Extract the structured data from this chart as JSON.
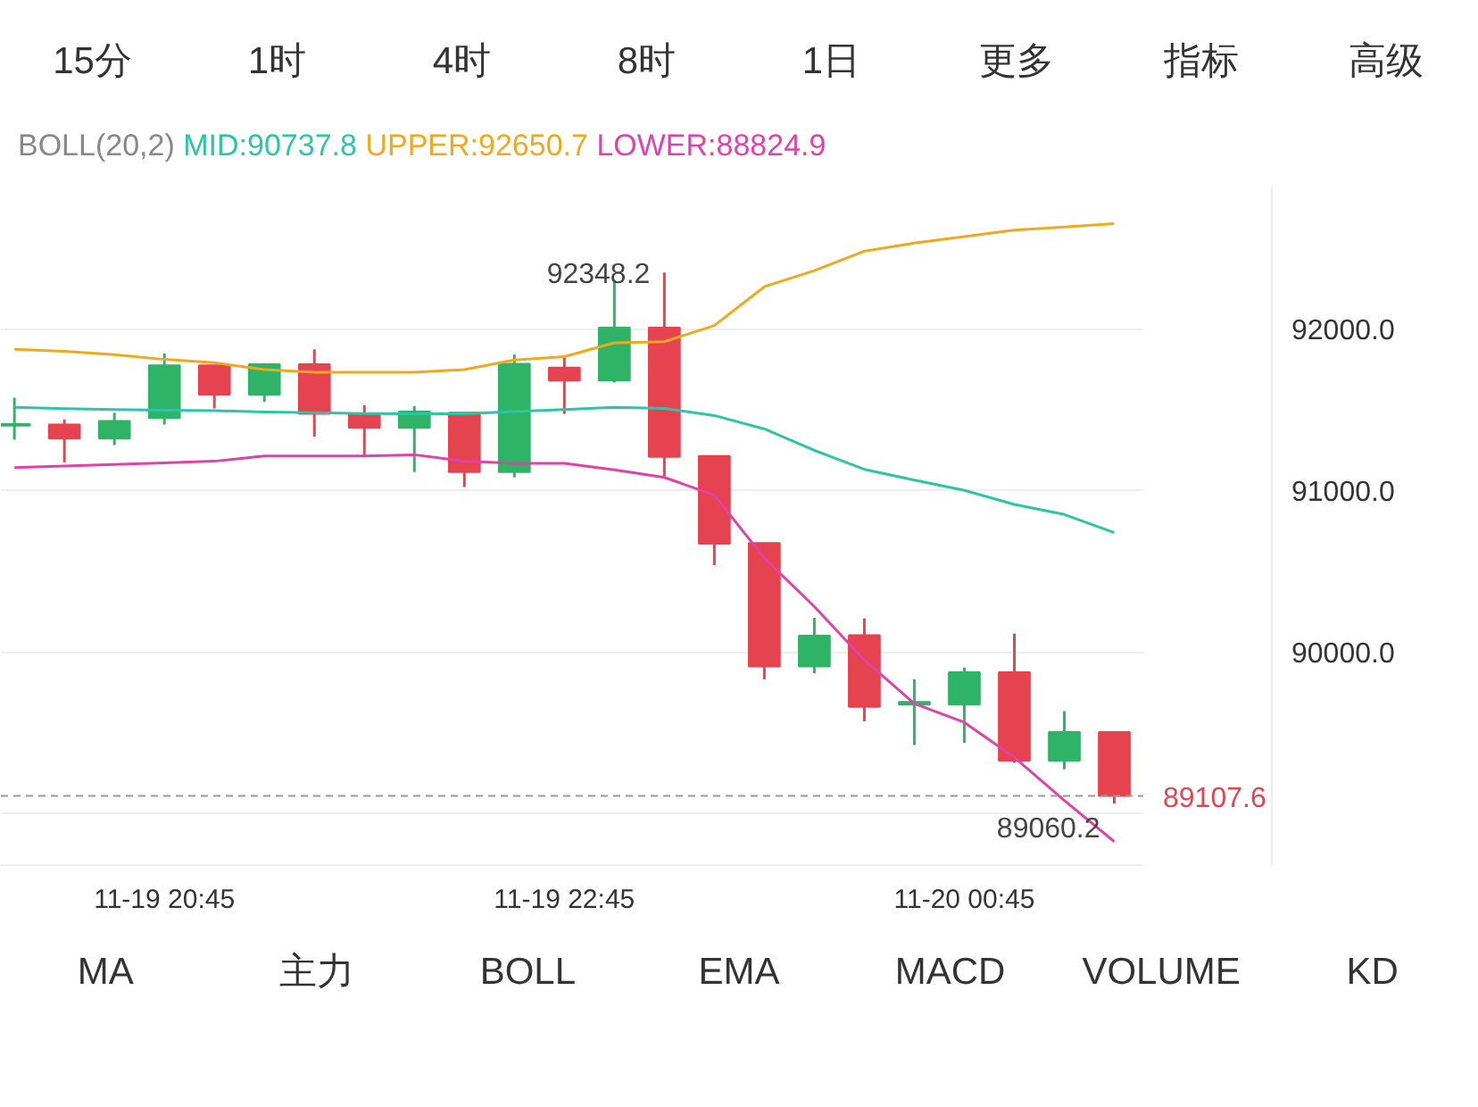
{
  "chart_data": {
    "type": "candlestick",
    "categories": [
      null,
      null,
      null,
      "11-19 20:45",
      null,
      null,
      null,
      null,
      null,
      null,
      null,
      "11-19 22:45",
      null,
      null,
      null,
      null,
      null,
      null,
      null,
      "11-20 00:45",
      null,
      null,
      null
    ],
    "ohlc": [
      [
        91400,
        91573,
        91313,
        91410
      ],
      [
        91407,
        91437,
        91173,
        91320
      ],
      [
        91320,
        91480,
        91280,
        91430
      ],
      [
        91447,
        91847,
        91407,
        91773
      ],
      [
        91773,
        91773,
        91507,
        91593
      ],
      [
        91593,
        91787,
        91547,
        91780
      ],
      [
        91780,
        91873,
        91333,
        91473
      ],
      [
        91473,
        91527,
        91207,
        91387
      ],
      [
        91387,
        91520,
        91113,
        91487
      ],
      [
        91480,
        91480,
        91020,
        91113
      ],
      [
        91113,
        91840,
        91080,
        91783
      ],
      [
        91760,
        91833,
        91473,
        91680
      ],
      [
        91680,
        92300,
        91667,
        92007
      ],
      [
        92007,
        92348.2,
        91087,
        91207
      ],
      [
        91213,
        91213,
        90537,
        90670
      ],
      [
        90673,
        90673,
        89830,
        89910
      ],
      [
        89910,
        90210,
        89867,
        90100
      ],
      [
        90103,
        90207,
        89570,
        89660
      ],
      [
        89673,
        89830,
        89423,
        89690
      ],
      [
        89673,
        89903,
        89437,
        89873
      ],
      [
        89873,
        90113,
        89313,
        89327
      ],
      [
        89327,
        89633,
        89273,
        89503
      ],
      [
        89503,
        89503,
        89060.2,
        89107.6
      ]
    ],
    "colors": [
      "#2fb366",
      "#e5434f",
      "#2fb366",
      "#2fb366",
      "#e5434f",
      "#2fb366",
      "#e5434f",
      "#e5434f",
      "#2fb366",
      "#e5434f",
      "#2fb366",
      "#e5434f",
      "#2fb366",
      "#e5434f",
      "#e5434f",
      "#e5434f",
      "#2fb366",
      "#e5434f",
      "#2fb366",
      "#2fb366",
      "#e5434f",
      "#2fb366",
      "#e5434f"
    ],
    "legend_title": "BOLL(20,2)",
    "legend": "top",
    "series": [
      {
        "type": "line",
        "name": "MID:90737.8",
        "color": "#2cc5a5",
        "values": [
          91513,
          91505,
          91500,
          91495,
          91493,
          91485,
          91480,
          91475,
          91473,
          91473,
          91487,
          91500,
          91513,
          91507,
          91463,
          91380,
          91247,
          91130,
          91063,
          91000,
          90913,
          90850,
          90737.8
        ]
      },
      {
        "type": "line",
        "name": "UPPER:92650.7",
        "color": "#f0a81c",
        "values": [
          91873,
          91860,
          91840,
          91810,
          91790,
          91747,
          91730,
          91730,
          91730,
          91747,
          91807,
          91827,
          91913,
          91920,
          92020,
          92260,
          92360,
          92480,
          92530,
          92570,
          92610,
          92630,
          92650.7
        ]
      },
      {
        "type": "line",
        "name": "LOWER:88824.9",
        "color": "#e043a8",
        "values": [
          91140,
          91150,
          91160,
          91170,
          91180,
          91213,
          91213,
          91213,
          91220,
          91180,
          91167,
          91167,
          91127,
          91080,
          90970,
          90580,
          90280,
          89950,
          89680,
          89563,
          89347,
          89080,
          88824.9
        ]
      }
    ],
    "ylim": [
      88680,
      92880
    ],
    "yticks": [
      {
        "value": 89000,
        "label": null
      },
      {
        "value": 90000,
        "label": "90000.0"
      },
      {
        "value": 91000,
        "label": "91000.0"
      },
      {
        "value": 92000,
        "label": "92000.0"
      }
    ],
    "grid": "y",
    "ref_lines": [
      {
        "axis": "y",
        "value": 89107.6,
        "label": "89107.6",
        "color": "#999999",
        "line_style": "dashed"
      }
    ],
    "annotations": [
      "92348.2",
      "89060.2",
      "15分",
      "1时",
      "4时",
      "8时",
      "1日",
      "更多",
      "指标",
      "高级",
      "MA",
      "主力",
      "BOLL",
      "EMA",
      "MACD",
      "VOLUME",
      "KD"
    ]
  }
}
